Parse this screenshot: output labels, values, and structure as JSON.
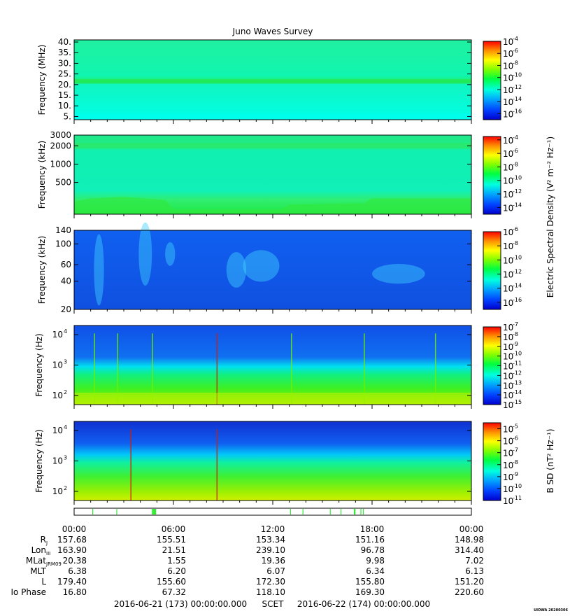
{
  "title": "Juno Waves Survey",
  "chart_data": [
    {
      "type": "heatmap",
      "ylabel": "Frequency (MHz)",
      "ylim": [
        3.5,
        41
      ],
      "y_scale": "linear",
      "yticks": [
        "40.",
        "35.",
        "30.",
        "25.",
        "20.",
        "15.",
        "10.",
        "5."
      ],
      "ytick_values": [
        40,
        35,
        30,
        25,
        20,
        15,
        10,
        5
      ],
      "colorbar_ticks": [
        "-4",
        "-6",
        "-8",
        "-10",
        "-12",
        "-14",
        "-16"
      ],
      "colorbar_range": [
        -17,
        -4
      ]
    },
    {
      "type": "heatmap",
      "ylabel": "Frequency (kHz)",
      "ylim": [
        150,
        3000
      ],
      "y_scale": "log",
      "yticks": [
        "3000",
        "2000",
        "1000",
        "500"
      ],
      "ytick_values": [
        3000,
        2000,
        1000,
        500
      ],
      "colorbar_ticks": [
        "-4",
        "-6",
        "-8",
        "-10",
        "-12",
        "-14"
      ],
      "colorbar_range": [
        -15,
        -3.5
      ]
    },
    {
      "type": "heatmap",
      "ylabel": "Frequency (kHz)",
      "ylim": [
        20,
        140
      ],
      "y_scale": "log",
      "yticks": [
        "140",
        "100",
        "60",
        "40",
        "20"
      ],
      "ytick_values": [
        140,
        100,
        60,
        40,
        20
      ],
      "colorbar_ticks": [
        "-6",
        "-8",
        "-10",
        "-12",
        "-14",
        "-16"
      ],
      "colorbar_range": [
        -17,
        -6
      ],
      "colorbar_label": "Electric Spectral Density (V² m⁻² Hz⁻¹)"
    },
    {
      "type": "heatmap",
      "ylabel": "Frequency (Hz)",
      "ylim": [
        50,
        20000
      ],
      "y_scale": "log",
      "yticks": [
        "4",
        "3",
        "2"
      ],
      "ytick_values": [
        10000,
        1000,
        100
      ],
      "colorbar_ticks": [
        "-7",
        "-8",
        "-9",
        "-10",
        "-11",
        "-12",
        "-13",
        "-14",
        "-15"
      ],
      "colorbar_range": [
        -15,
        -7
      ]
    },
    {
      "type": "heatmap",
      "ylabel": "Frequency (Hz)",
      "ylim": [
        50,
        20000
      ],
      "y_scale": "log",
      "yticks": [
        "4",
        "3",
        "2"
      ],
      "ytick_values": [
        10000,
        1000,
        100
      ],
      "colorbar_ticks": [
        "-5",
        "-6",
        "-7",
        "-8",
        "-9",
        "-10",
        "-11"
      ],
      "colorbar_range": [
        -11,
        -4.5
      ],
      "colorbar_label": "B SD (nT² Hz⁻¹)"
    }
  ],
  "time_axis": {
    "ticks": [
      "00:00",
      "06:00",
      "12:00",
      "18:00",
      "00:00"
    ],
    "tick_hours": [
      0,
      6,
      12,
      18,
      24
    ]
  },
  "ephemeris": [
    {
      "label": "R",
      "sub": "J",
      "values": [
        "157.68",
        "155.51",
        "153.34",
        "151.16",
        "148.98"
      ]
    },
    {
      "label": "Lon",
      "sub": "III",
      "values": [
        "163.90",
        "21.51",
        "239.10",
        "96.78",
        "314.40"
      ]
    },
    {
      "label": "MLat",
      "sub": "JRM09",
      "values": [
        "20.38",
        "1.55",
        "19.36",
        "9.98",
        "7.02"
      ]
    },
    {
      "label": "MLT",
      "sub": "",
      "values": [
        "6.38",
        "6.20",
        "6.07",
        "6.34",
        "6.13"
      ]
    },
    {
      "label": "L",
      "sub": "",
      "values": [
        "179.40",
        "155.60",
        "172.30",
        "155.80",
        "151.20"
      ]
    },
    {
      "label": "Io Phase",
      "sub": "",
      "values": [
        "16.80",
        "67.32",
        "118.10",
        "169.30",
        "220.60"
      ]
    }
  ],
  "footer": {
    "start": "2016-06-21 (173) 00:00:00.000",
    "scet": "SCET",
    "end": "2016-06-22 (174) 00:00:00.000"
  },
  "stamp": "UIOWA 20200306",
  "mode_bar": {
    "color": "#33ee33",
    "segments_hours": [
      [
        1.1,
        1.15
      ],
      [
        2.55,
        2.6
      ],
      [
        4.7,
        4.95
      ],
      [
        13.05,
        13.1
      ],
      [
        13.8,
        13.85
      ],
      [
        15.45,
        15.5
      ],
      [
        16.1,
        16.15
      ],
      [
        16.9,
        17.0
      ],
      [
        17.3,
        17.35
      ],
      [
        17.45,
        17.5
      ]
    ]
  }
}
